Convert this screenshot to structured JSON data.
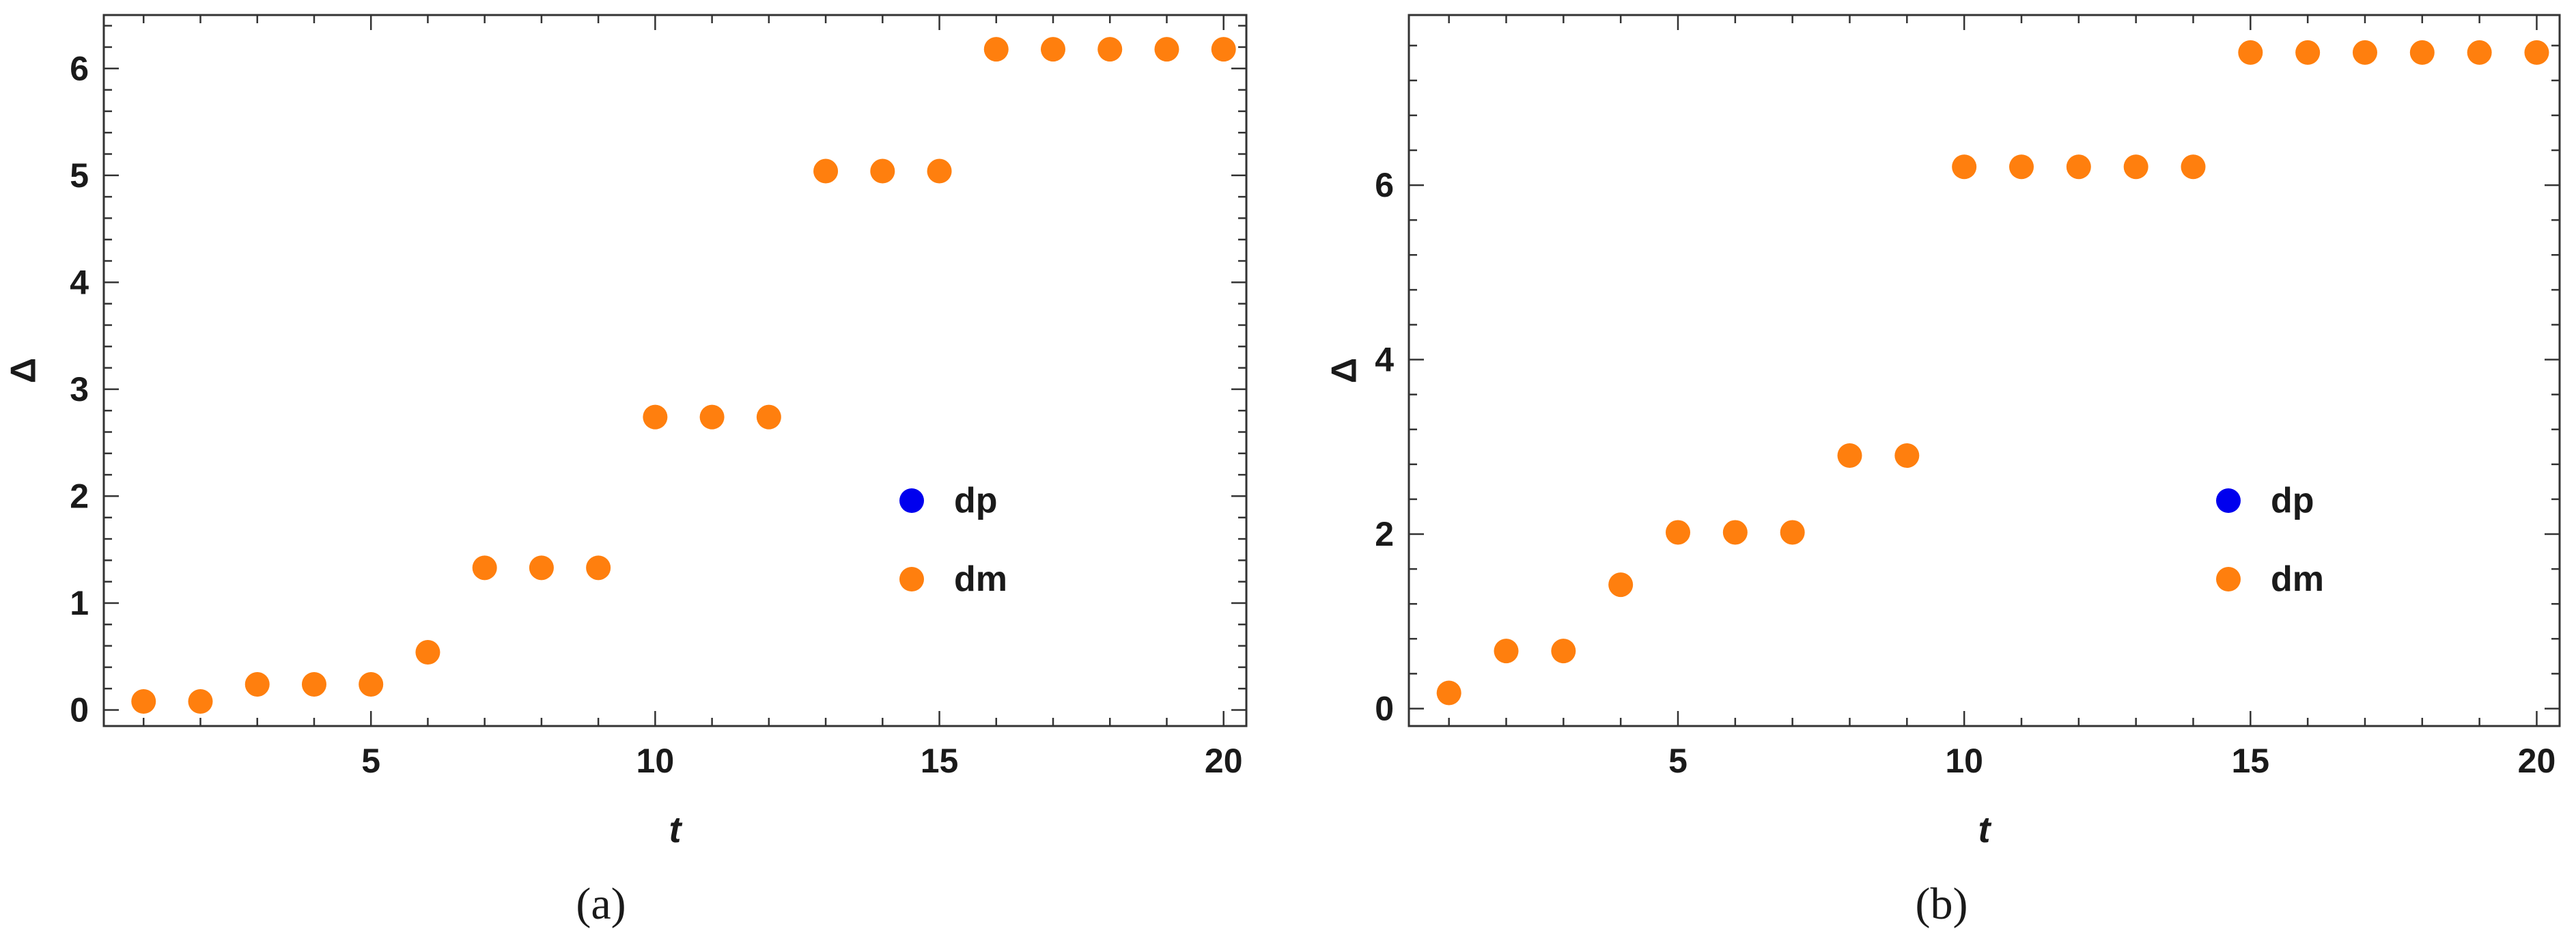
{
  "chart_data": [
    {
      "type": "scatter",
      "panel_label": "(a)",
      "xlabel": "t",
      "ylabel": "Δ",
      "xlim": [
        0.3,
        20.4
      ],
      "ylim": [
        -0.15,
        6.5
      ],
      "xticks": [
        5,
        10,
        15,
        20
      ],
      "yticks": [
        0,
        1,
        2,
        3,
        4,
        5,
        6
      ],
      "grid": false,
      "legend_position": "center-right",
      "series": [
        {
          "name": "dp",
          "color": "#0000ee",
          "x": [],
          "y": []
        },
        {
          "name": "dm",
          "color": "#ff7f0e",
          "x": [
            1,
            2,
            3,
            4,
            5,
            6,
            7,
            8,
            9,
            10,
            11,
            12,
            13,
            14,
            15,
            16,
            17,
            18,
            19,
            20
          ],
          "y": [
            0.08,
            0.08,
            0.24,
            0.24,
            0.24,
            0.54,
            1.33,
            1.33,
            1.33,
            2.74,
            2.74,
            2.74,
            5.04,
            5.04,
            5.04,
            6.18,
            6.18,
            6.18,
            6.18,
            6.18
          ]
        }
      ]
    },
    {
      "type": "scatter",
      "panel_label": "(b)",
      "xlabel": "t",
      "ylabel": "Δ",
      "xlim": [
        0.3,
        20.4
      ],
      "ylim": [
        -0.2,
        7.95
      ],
      "xticks": [
        5,
        10,
        15,
        20
      ],
      "yticks": [
        0,
        2,
        4,
        6
      ],
      "grid": false,
      "legend_position": "center-right",
      "series": [
        {
          "name": "dp",
          "color": "#0000ee",
          "x": [],
          "y": []
        },
        {
          "name": "dm",
          "color": "#ff7f0e",
          "x": [
            1,
            2,
            3,
            4,
            5,
            6,
            7,
            8,
            9,
            10,
            11,
            12,
            13,
            14,
            15,
            16,
            17,
            18,
            19,
            20
          ],
          "y": [
            0.18,
            0.66,
            0.66,
            1.42,
            2.02,
            2.02,
            2.02,
            2.9,
            2.9,
            6.21,
            6.21,
            6.21,
            6.21,
            6.21,
            7.52,
            7.52,
            7.52,
            7.52,
            7.52,
            7.52
          ]
        }
      ]
    }
  ]
}
